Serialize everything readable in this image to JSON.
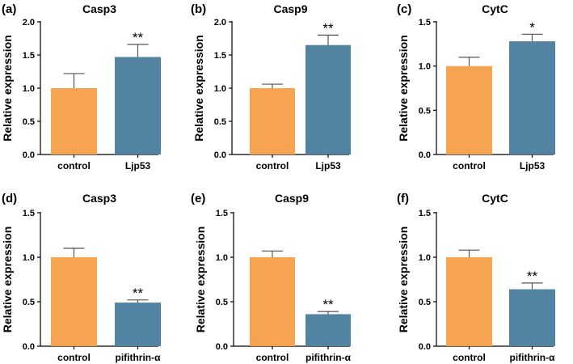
{
  "colors": {
    "control": "#f7a452",
    "treatment": "#5383a3"
  },
  "chart_data": [
    {
      "type": "bar",
      "panel": "(a)",
      "title": "Casp3",
      "ylabel": "Relative expression",
      "ylim": [
        0,
        2.0
      ],
      "yticks": [
        "0.0",
        "0.5",
        "1.0",
        "1.5",
        "2.0"
      ],
      "yticks_values": [
        0,
        0.5,
        1.0,
        1.5,
        2.0
      ],
      "categories": [
        "control",
        "Ljp53"
      ],
      "values": [
        1.0,
        1.47
      ],
      "errors": [
        0.22,
        0.19
      ],
      "significance": [
        "",
        "**"
      ]
    },
    {
      "type": "bar",
      "panel": "(b)",
      "title": "Casp9",
      "ylabel": "Relative expression",
      "ylim": [
        0,
        2.0
      ],
      "yticks": [
        "0.0",
        "0.5",
        "1.0",
        "1.5",
        "2.0"
      ],
      "yticks_values": [
        0,
        0.5,
        1.0,
        1.5,
        2.0
      ],
      "categories": [
        "control",
        "Ljp53"
      ],
      "values": [
        1.0,
        1.65
      ],
      "errors": [
        0.06,
        0.15
      ],
      "significance": [
        "",
        "**"
      ]
    },
    {
      "type": "bar",
      "panel": "(c)",
      "title": "CytC",
      "ylabel": "Relative expression",
      "ylim": [
        0,
        1.5
      ],
      "yticks": [
        "0.0",
        "0.5",
        "1.0",
        "1.5"
      ],
      "yticks_values": [
        0,
        0.5,
        1.0,
        1.5
      ],
      "categories": [
        "control",
        "Ljp53"
      ],
      "values": [
        1.0,
        1.28
      ],
      "errors": [
        0.1,
        0.08
      ],
      "significance": [
        "",
        "*"
      ]
    },
    {
      "type": "bar",
      "panel": "(d)",
      "title": "Casp3",
      "ylabel": "Relative expression",
      "ylim": [
        0,
        1.5
      ],
      "yticks": [
        "0.0",
        "0.5",
        "1.0",
        "1.5"
      ],
      "yticks_values": [
        0,
        0.5,
        1.0,
        1.5
      ],
      "categories": [
        "control",
        "pifithrin-α"
      ],
      "values": [
        1.0,
        0.49
      ],
      "errors": [
        0.1,
        0.03
      ],
      "significance": [
        "",
        "**"
      ]
    },
    {
      "type": "bar",
      "panel": "(e)",
      "title": "Casp9",
      "ylabel": "Relative expression",
      "ylim": [
        0,
        1.5
      ],
      "yticks": [
        "0.0",
        "0.5",
        "1.0",
        "1.5"
      ],
      "yticks_values": [
        0,
        0.5,
        1.0,
        1.5
      ],
      "categories": [
        "control",
        "pifithrin-α"
      ],
      "values": [
        1.0,
        0.36
      ],
      "errors": [
        0.07,
        0.03
      ],
      "significance": [
        "",
        "**"
      ]
    },
    {
      "type": "bar",
      "panel": "(f)",
      "title": "CytC",
      "ylabel": "Relative expression",
      "ylim": [
        0,
        1.5
      ],
      "yticks": [
        "0.0",
        "0.5",
        "1.0",
        "1.5"
      ],
      "yticks_values": [
        0,
        0.5,
        1.0,
        1.5
      ],
      "categories": [
        "control",
        "pifithrin-α"
      ],
      "values": [
        1.0,
        0.64
      ],
      "errors": [
        0.08,
        0.07
      ],
      "significance": [
        "",
        "**"
      ]
    }
  ]
}
